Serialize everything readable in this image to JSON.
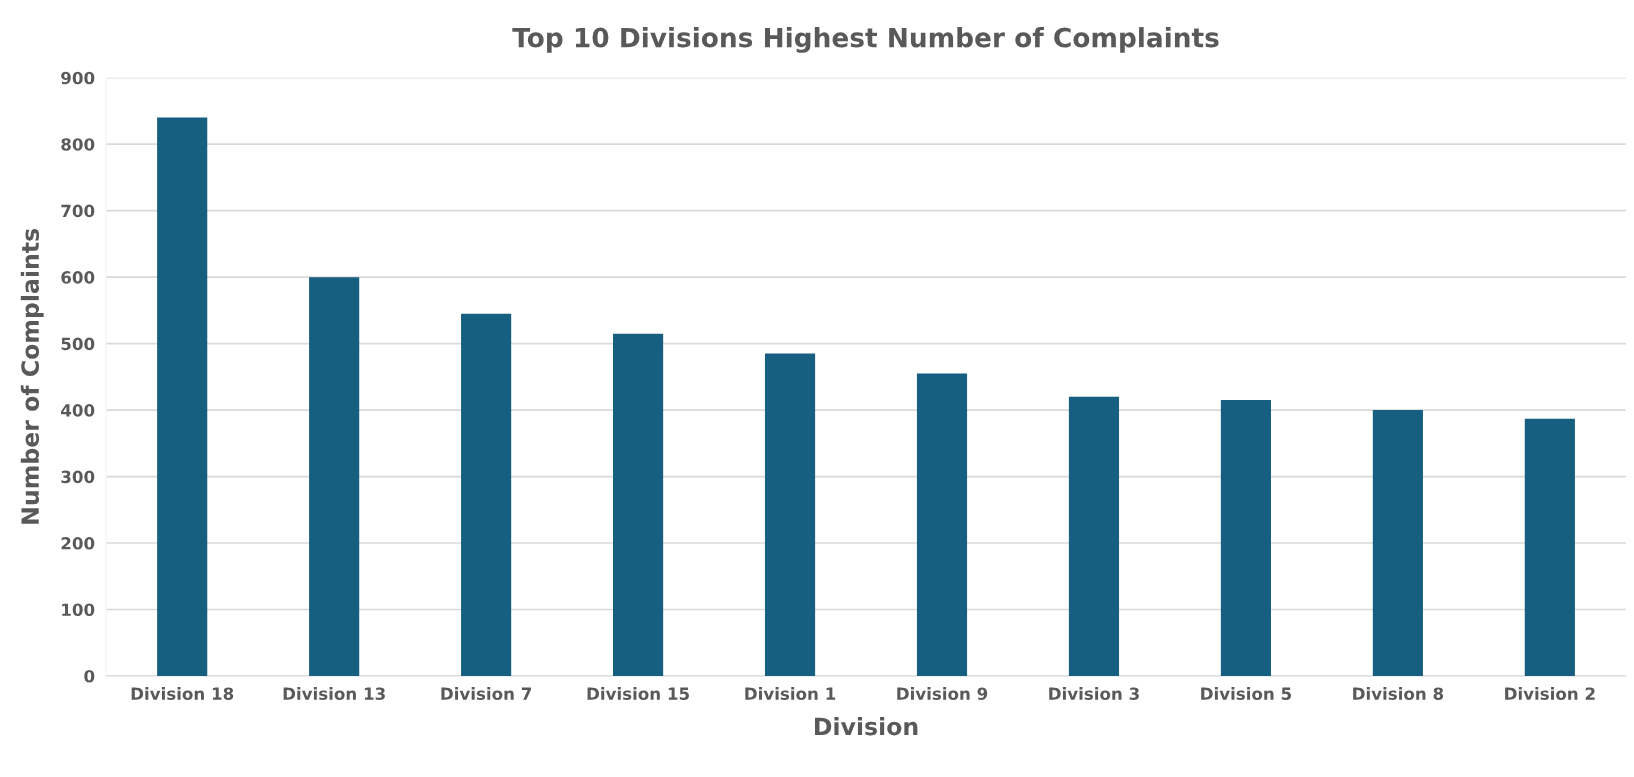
{
  "chart_data": {
    "type": "bar",
    "title": "Top 10 Divisions Highest Number of Complaints",
    "xlabel": "Division",
    "ylabel": "Number of Complaints",
    "categories": [
      "Division 18",
      "Division 13",
      "Division 7",
      "Division 15",
      "Division 1",
      "Division 9",
      "Division 3",
      "Division 5",
      "Division 8",
      "Division 2"
    ],
    "values": [
      840,
      600,
      545,
      515,
      485,
      455,
      420,
      415,
      400,
      387
    ],
    "color": "#175f80",
    "ylim": [
      0,
      900
    ],
    "yticks": [
      0,
      100,
      200,
      300,
      400,
      500,
      600,
      700,
      800,
      900
    ],
    "grid": "y",
    "legend": false
  }
}
